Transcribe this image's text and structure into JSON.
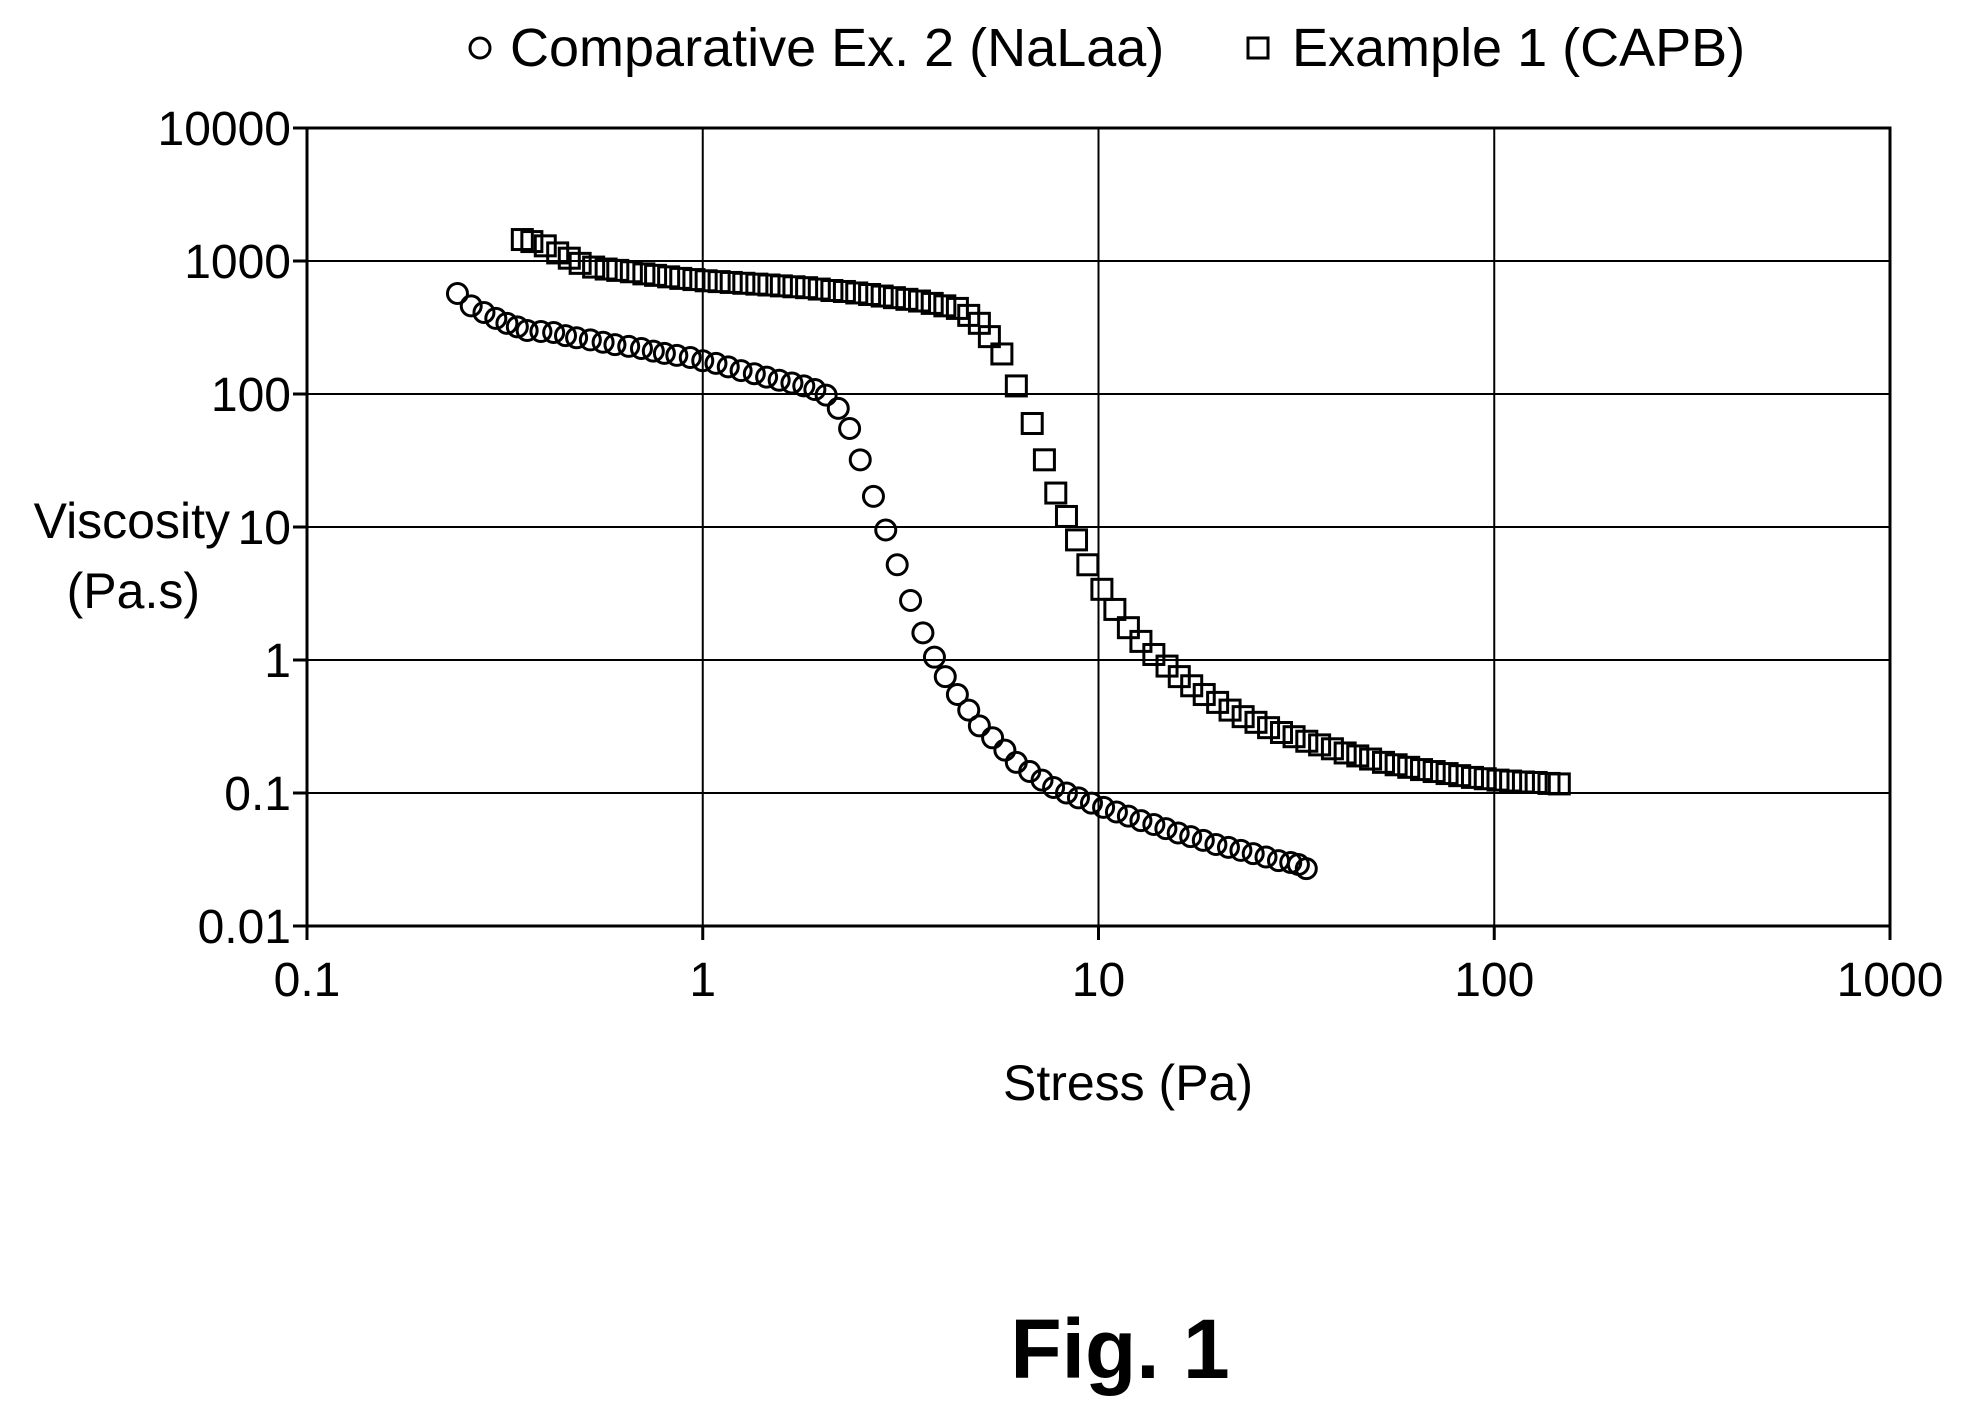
{
  "caption": "Fig. 1",
  "chart_data": {
    "type": "scatter",
    "title": "",
    "xlabel": "Stress (Pa)",
    "ylabel_lines": [
      "Viscosity",
      "(Pa.s)"
    ],
    "x_scale": "log",
    "y_scale": "log",
    "xlim": [
      0.1,
      1000
    ],
    "ylim": [
      0.01,
      10000
    ],
    "x_ticks": [
      0.1,
      1,
      10,
      100,
      1000
    ],
    "x_tick_labels": [
      "0.1",
      "1",
      "10",
      "100",
      "1000"
    ],
    "y_ticks": [
      0.01,
      0.1,
      1,
      10,
      100,
      1000,
      10000
    ],
    "y_tick_labels": [
      "0.01",
      "0.1",
      "1",
      "10",
      "100",
      "1000",
      "10000"
    ],
    "grid": true,
    "legend_position": "top",
    "series": [
      {
        "name": "Comparative Ex. 2 (NaLaa)",
        "marker": "circle",
        "color": "#000000",
        "points": [
          [
            0.24,
            570
          ],
          [
            0.26,
            460
          ],
          [
            0.28,
            410
          ],
          [
            0.3,
            370
          ],
          [
            0.32,
            340
          ],
          [
            0.34,
            320
          ],
          [
            0.36,
            300
          ],
          [
            0.39,
            295
          ],
          [
            0.42,
            290
          ],
          [
            0.45,
            275
          ],
          [
            0.48,
            265
          ],
          [
            0.52,
            255
          ],
          [
            0.56,
            245
          ],
          [
            0.6,
            235
          ],
          [
            0.65,
            228
          ],
          [
            0.7,
            220
          ],
          [
            0.75,
            210
          ],
          [
            0.8,
            202
          ],
          [
            0.86,
            195
          ],
          [
            0.93,
            188
          ],
          [
            1.0,
            178
          ],
          [
            1.08,
            170
          ],
          [
            1.16,
            160
          ],
          [
            1.25,
            150
          ],
          [
            1.35,
            142
          ],
          [
            1.45,
            134
          ],
          [
            1.56,
            127
          ],
          [
            1.68,
            121
          ],
          [
            1.8,
            115
          ],
          [
            1.92,
            108
          ],
          [
            2.05,
            98
          ],
          [
            2.2,
            78
          ],
          [
            2.35,
            55
          ],
          [
            2.5,
            32
          ],
          [
            2.7,
            17
          ],
          [
            2.9,
            9.5
          ],
          [
            3.1,
            5.2
          ],
          [
            3.35,
            2.8
          ],
          [
            3.6,
            1.6
          ],
          [
            3.85,
            1.05
          ],
          [
            4.1,
            0.75
          ],
          [
            4.4,
            0.55
          ],
          [
            4.7,
            0.42
          ],
          [
            5.0,
            0.32
          ],
          [
            5.4,
            0.26
          ],
          [
            5.8,
            0.21
          ],
          [
            6.2,
            0.17
          ],
          [
            6.7,
            0.145
          ],
          [
            7.2,
            0.125
          ],
          [
            7.7,
            0.11
          ],
          [
            8.3,
            0.1
          ],
          [
            8.9,
            0.092
          ],
          [
            9.6,
            0.084
          ],
          [
            10.3,
            0.078
          ],
          [
            11.1,
            0.072
          ],
          [
            11.9,
            0.067
          ],
          [
            12.8,
            0.062
          ],
          [
            13.8,
            0.058
          ],
          [
            14.8,
            0.054
          ],
          [
            15.9,
            0.05
          ],
          [
            17.1,
            0.047
          ],
          [
            18.4,
            0.044
          ],
          [
            19.8,
            0.041
          ],
          [
            21.3,
            0.039
          ],
          [
            22.9,
            0.037
          ],
          [
            24.6,
            0.035
          ],
          [
            26.5,
            0.033
          ],
          [
            28.5,
            0.031
          ],
          [
            30.6,
            0.03
          ],
          [
            32.0,
            0.029
          ],
          [
            33.5,
            0.027
          ]
        ]
      },
      {
        "name": "Example 1 (CAPB)",
        "marker": "square",
        "color": "#000000",
        "points": [
          [
            0.35,
            1450
          ],
          [
            0.37,
            1400
          ],
          [
            0.4,
            1300
          ],
          [
            0.43,
            1150
          ],
          [
            0.46,
            1050
          ],
          [
            0.49,
            960
          ],
          [
            0.53,
            900
          ],
          [
            0.57,
            870
          ],
          [
            0.61,
            850
          ],
          [
            0.66,
            830
          ],
          [
            0.71,
            800
          ],
          [
            0.76,
            780
          ],
          [
            0.82,
            760
          ],
          [
            0.88,
            740
          ],
          [
            0.95,
            725
          ],
          [
            1.02,
            710
          ],
          [
            1.1,
            700
          ],
          [
            1.18,
            690
          ],
          [
            1.27,
            680
          ],
          [
            1.37,
            670
          ],
          [
            1.47,
            660
          ],
          [
            1.58,
            650
          ],
          [
            1.7,
            640
          ],
          [
            1.83,
            630
          ],
          [
            1.97,
            615
          ],
          [
            2.12,
            600
          ],
          [
            2.28,
            590
          ],
          [
            2.45,
            575
          ],
          [
            2.64,
            560
          ],
          [
            2.84,
            545
          ],
          [
            3.05,
            530
          ],
          [
            3.28,
            515
          ],
          [
            3.53,
            500
          ],
          [
            3.8,
            480
          ],
          [
            4.09,
            460
          ],
          [
            4.4,
            440
          ],
          [
            4.7,
            390
          ],
          [
            5.0,
            340
          ],
          [
            5.3,
            270
          ],
          [
            5.7,
            200
          ],
          [
            6.2,
            115
          ],
          [
            6.8,
            60
          ],
          [
            7.3,
            32
          ],
          [
            7.8,
            18
          ],
          [
            8.3,
            12
          ],
          [
            8.8,
            8.0
          ],
          [
            9.4,
            5.2
          ],
          [
            10.2,
            3.4
          ],
          [
            11.0,
            2.4
          ],
          [
            11.9,
            1.75
          ],
          [
            12.8,
            1.38
          ],
          [
            13.8,
            1.1
          ],
          [
            14.9,
            0.9
          ],
          [
            16.0,
            0.75
          ],
          [
            17.2,
            0.64
          ],
          [
            18.5,
            0.55
          ],
          [
            20.0,
            0.48
          ],
          [
            21.5,
            0.42
          ],
          [
            23.2,
            0.375
          ],
          [
            25.0,
            0.34
          ],
          [
            26.9,
            0.31
          ],
          [
            29.0,
            0.285
          ],
          [
            31.2,
            0.265
          ],
          [
            33.6,
            0.245
          ],
          [
            36.2,
            0.23
          ],
          [
            39.0,
            0.215
          ],
          [
            42.0,
            0.2
          ],
          [
            45.2,
            0.19
          ],
          [
            48.7,
            0.18
          ],
          [
            52.5,
            0.17
          ],
          [
            56.5,
            0.163
          ],
          [
            60.8,
            0.156
          ],
          [
            65.5,
            0.15
          ],
          [
            70.5,
            0.145
          ],
          [
            76.0,
            0.14
          ],
          [
            81.8,
            0.135
          ],
          [
            88.1,
            0.131
          ],
          [
            94.9,
            0.128
          ],
          [
            102.2,
            0.125
          ],
          [
            110.0,
            0.123
          ],
          [
            118.5,
            0.121
          ],
          [
            127.6,
            0.12
          ],
          [
            137.5,
            0.118
          ],
          [
            146.0,
            0.117
          ]
        ]
      }
    ]
  }
}
